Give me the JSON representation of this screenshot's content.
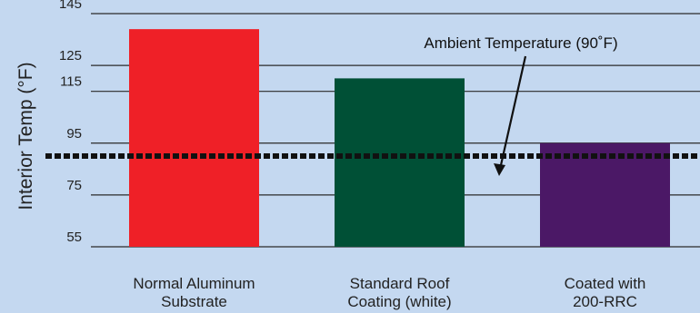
{
  "chart_data": {
    "type": "bar",
    "title": "",
    "xlabel": "",
    "ylabel": "Interior Temp (°F)",
    "ylim": [
      55,
      145
    ],
    "yticks": [
      55,
      75,
      95,
      115,
      125,
      145
    ],
    "grid": true,
    "categories": [
      [
        "Normal Aluminum",
        "Substrate"
      ],
      [
        "Standard Roof",
        "Coating (white)"
      ],
      [
        "Coated with",
        "200-RRC"
      ]
    ],
    "values": [
      139,
      120,
      95
    ],
    "bar_colors": [
      "#ef2027",
      "#005036",
      "#4b1866"
    ],
    "reference_line": {
      "value": 90,
      "label": "Ambient Temperature (90˚F)",
      "style": "dashed",
      "color": "#111111"
    }
  }
}
